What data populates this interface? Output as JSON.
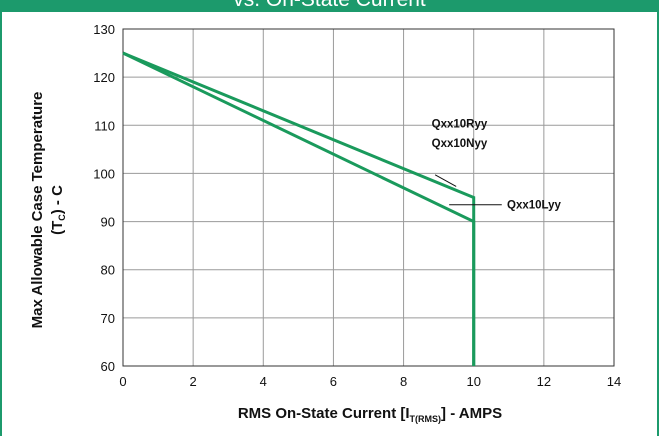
{
  "header": {
    "title_fragment": "vs. On-State Current"
  },
  "colors": {
    "accent": "#1c9a6c",
    "series": "#1a9a5c",
    "grid": "#9a9a9a"
  },
  "chart_data": {
    "type": "line",
    "xlabel_main": "RMS On-State Current [I",
    "xlabel_sub": "T(RMS)",
    "xlabel_tail": "] - AMPS",
    "ylabel_line1": "Max Allowable Case Temperature",
    "ylabel_line2_a": "(T",
    "ylabel_line2_sub": "C",
    "ylabel_line2_b": ") - C",
    "xlim": [
      0,
      14
    ],
    "ylim": [
      60,
      130
    ],
    "x_ticks": [
      0,
      2,
      4,
      6,
      8,
      10,
      12,
      14
    ],
    "y_ticks": [
      60,
      70,
      80,
      90,
      100,
      110,
      120,
      130
    ],
    "grid": true,
    "series": [
      {
        "name": "Qxx10Ryy / Qxx10Nyy",
        "x": [
          0,
          10,
          10
        ],
        "y": [
          125,
          95,
          60
        ]
      },
      {
        "name": "Qxx10Lyy",
        "x": [
          0,
          10,
          10
        ],
        "y": [
          125,
          90,
          60
        ]
      }
    ],
    "annotations": {
      "upper_line1": "Qxx10Ryy",
      "upper_line2": "Qxx10Nyy",
      "lower": "Qxx10Lyy"
    }
  }
}
